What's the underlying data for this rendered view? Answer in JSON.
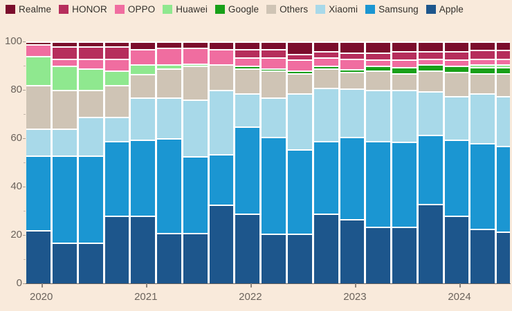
{
  "background_color": "#F9EADB",
  "legend": {
    "items": [
      {
        "label": "Realme",
        "color": "#7B0D2C"
      },
      {
        "label": "HONOR",
        "color": "#B62E5C"
      },
      {
        "label": "OPPO",
        "color": "#F06DA0"
      },
      {
        "label": "Huawei",
        "color": "#8FE88F"
      },
      {
        "label": "Google",
        "color": "#18A018"
      },
      {
        "label": "Others",
        "color": "#CFC4B5"
      },
      {
        "label": "Xiaomi",
        "color": "#A8D9E9"
      },
      {
        "label": "Samsung",
        "color": "#1B96D2"
      },
      {
        "label": "Apple",
        "color": "#1D568C"
      }
    ]
  },
  "chart_data": {
    "type": "bar",
    "stacked": true,
    "unit": "%",
    "title": "",
    "xlabel": "",
    "ylabel": "",
    "grid": false,
    "legend_position": "top",
    "ylim": [
      0,
      100
    ],
    "yticks": [
      0,
      20,
      40,
      60,
      80,
      100
    ],
    "y_minor_ticks": [
      10,
      30,
      50,
      70,
      90
    ],
    "categories": [
      "2020 Q1",
      "2020 Q2",
      "2020 Q3",
      "2020 Q4",
      "2021 Q1",
      "2021 Q2",
      "2021 Q3",
      "2021 Q4",
      "2022 Q1",
      "2022 Q2",
      "2022 Q3",
      "2022 Q4",
      "2023 Q1",
      "2023 Q2",
      "2023 Q3",
      "2023 Q4",
      "2024 Q1",
      "2024 Q2",
      "2024 Q3"
    ],
    "x_year_labels": [
      "2020",
      "2021",
      "2022",
      "2023",
      "2024"
    ],
    "x_year_label_category_indexes": [
      0,
      4,
      8,
      12,
      16
    ],
    "series_bottom_to_top": [
      {
        "name": "Apple",
        "color": "#1D568C",
        "values": [
          22,
          17,
          17,
          28,
          28,
          21,
          21,
          32.5,
          29,
          20.5,
          20.5,
          29,
          26.5,
          23.5,
          23.5,
          33,
          28,
          22.5,
          21.5
        ]
      },
      {
        "name": "Samsung",
        "color": "#1B96D2",
        "values": [
          31,
          36,
          36,
          31,
          31.5,
          39,
          31.5,
          21,
          36,
          40,
          35,
          30,
          34,
          35.5,
          35,
          28.5,
          31.5,
          35.5,
          35.5
        ]
      },
      {
        "name": "Xiaomi",
        "color": "#A8D9E9",
        "values": [
          11,
          11,
          16,
          10,
          17.5,
          17,
          23.5,
          26.5,
          13.5,
          16.5,
          23,
          22,
          20,
          21,
          21.5,
          18,
          18,
          20.5,
          20.5
        ]
      },
      {
        "name": "Others",
        "color": "#CFC4B5",
        "values": [
          18,
          16,
          11,
          13,
          9.5,
          12,
          14,
          10.5,
          10.5,
          11,
          8.5,
          8,
          7,
          8,
          7,
          8.5,
          10,
          8.5,
          9.5
        ]
      },
      {
        "name": "Google",
        "color": "#18A018",
        "values": [
          0,
          0,
          0,
          0,
          0,
          0,
          0,
          0,
          1,
          1,
          1,
          1,
          1,
          2,
          2.5,
          2.5,
          2.5,
          2.5,
          2.5
        ]
      },
      {
        "name": "Huawei",
        "color": "#8FE88F",
        "values": [
          12,
          10,
          9,
          6,
          4,
          1.5,
          1,
          0,
          0,
          0,
          0,
          0,
          0,
          0,
          0,
          0,
          0,
          1,
          1
        ]
      },
      {
        "name": "OPPO",
        "color": "#F06DA0",
        "values": [
          5,
          3,
          4,
          5,
          6.5,
          7,
          6.5,
          6.5,
          3.5,
          4.5,
          4.5,
          3.5,
          4.5,
          2.5,
          3,
          2.5,
          2.5,
          2.5,
          2.5
        ]
      },
      {
        "name": "HONOR",
        "color": "#B62E5C",
        "values": [
          0,
          5,
          5,
          5,
          0,
          0,
          0,
          0,
          3.5,
          3.5,
          2.5,
          2.5,
          2.5,
          3,
          3.5,
          3,
          3.5,
          3.5,
          3.5
        ]
      },
      {
        "name": "Realme",
        "color": "#7B0D2C",
        "values": [
          1,
          2,
          2,
          2,
          3,
          2.5,
          2.5,
          3,
          3,
          3,
          5,
          4,
          4.5,
          4.5,
          4,
          4,
          4,
          3.5,
          3.5
        ]
      }
    ]
  },
  "y_axis": {
    "tick_labels": [
      "0",
      "20",
      "40",
      "60",
      "80",
      "100"
    ]
  },
  "x_axis": {
    "tick_labels": [
      "2020",
      "2021",
      "2022",
      "2023",
      "2024"
    ]
  }
}
